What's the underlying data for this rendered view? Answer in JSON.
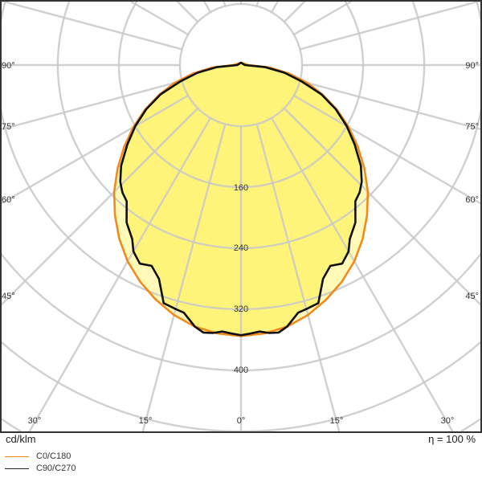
{
  "chart_data": {
    "type": "polar",
    "unit_label": "cd/klm",
    "efficiency_label": "η = 100 %",
    "radial_ticks": [
      80,
      160,
      240,
      320,
      400,
      480,
      560,
      640,
      720,
      800
    ],
    "radial_tick_labels": [
      "160",
      "240",
      "320",
      "400"
    ],
    "angle_step_deg": 15,
    "side_angle_labels": [
      "90°",
      "75°",
      "60°",
      "45°"
    ],
    "bottom_angle_labels": [
      "30°",
      "15°",
      "0°",
      "15°",
      "30°"
    ],
    "grid": true,
    "legend_placement": "bottom-left",
    "series": [
      {
        "name": "C0/C180",
        "color": "#f08a1c",
        "fill": "#fff9a6",
        "angles": [
          0,
          5,
          10,
          15,
          20,
          25,
          30,
          35,
          40,
          45,
          50,
          55,
          60,
          65,
          70,
          75,
          80,
          85,
          90
        ],
        "values": [
          355,
          353,
          348,
          339,
          327,
          313,
          297,
          278,
          257,
          235,
          211,
          187,
          163,
          139,
          114,
          90,
          64,
          38,
          10
        ]
      },
      {
        "name": "C90/C270",
        "color": "#111111",
        "fill": "#fff36a",
        "angles": [
          0,
          2,
          4,
          6,
          8,
          10,
          13,
          15,
          18,
          21,
          24,
          27,
          30,
          32,
          36,
          40,
          43,
          46,
          50,
          55,
          60,
          65,
          70,
          75,
          80,
          85,
          90
        ],
        "values": [
          354,
          352,
          350,
          353,
          354,
          348,
          333,
          331,
          328,
          300,
          288,
          292,
          282,
          269,
          255,
          233,
          228,
          220,
          205,
          182,
          160,
          137,
          112,
          82,
          58,
          32,
          5
        ]
      }
    ]
  }
}
